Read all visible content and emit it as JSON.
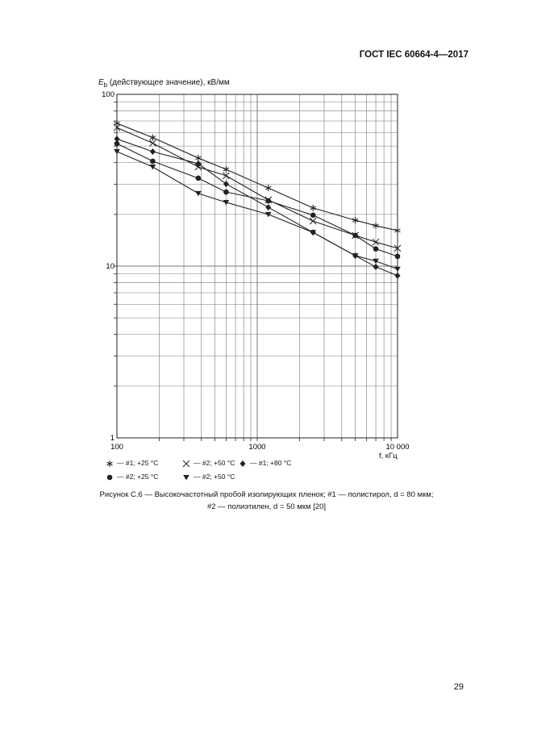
{
  "header": {
    "standard": "ГОСТ IEC 60664-4—2017"
  },
  "page_number": "29",
  "caption": {
    "line1": "Рисунок С.6 — Высокочастотный пробой изолирующих пленок; #1 — полистирол, d = 80 мкм;",
    "line2": "#2 — полиэтилен, d = 50 мкм [20]"
  },
  "chart_data": {
    "type": "line",
    "ylabel_main": "E",
    "ylabel_sub": "b",
    "ylabel_rest": " (действующее значение), кВ/мм",
    "xlabel": "f, кГц",
    "x_scale": "log",
    "y_scale": "log",
    "xlim": [
      100,
      10000
    ],
    "ylim": [
      1,
      100
    ],
    "grid": true,
    "x_tick_labels": [
      "100",
      "1000",
      "10 000"
    ],
    "y_tick_labels": [
      "100",
      "10",
      "1"
    ],
    "legend_placement": "bottom",
    "x": [
      100,
      180,
      380,
      600,
      1200,
      2500,
      5000,
      7000,
      10000
    ],
    "series": [
      {
        "name": "— #1; +25 °C",
        "marker": "star",
        "values": [
          67.8,
          56,
          42.6,
          36.6,
          28.5,
          21.8,
          18.5,
          17.2,
          16.1
        ]
      },
      {
        "name": "— #2; +50 °C",
        "marker": "x",
        "values": [
          64,
          52,
          37.8,
          33.6,
          24.3,
          18.3,
          15.1,
          13.8,
          12.7
        ]
      },
      {
        "name": "— #1; +80 °C",
        "marker": "diamond",
        "values": [
          55,
          46.4,
          39.5,
          30.1,
          22,
          15.7,
          11.5,
          9.9,
          8.8
        ]
      },
      {
        "name": "— #2; +25 °C",
        "marker": "circle",
        "values": [
          51.7,
          40.8,
          32.5,
          27,
          24,
          19.8,
          15.1,
          12.6,
          11.4
        ]
      },
      {
        "name": "— #2; +50 °C",
        "marker": "triangle-down",
        "values": [
          46.4,
          37.8,
          26.5,
          23.5,
          20,
          15.7,
          11.5,
          10.7,
          9.6
        ]
      }
    ],
    "colors": {
      "line": "#222222",
      "grid": "#777777"
    }
  }
}
